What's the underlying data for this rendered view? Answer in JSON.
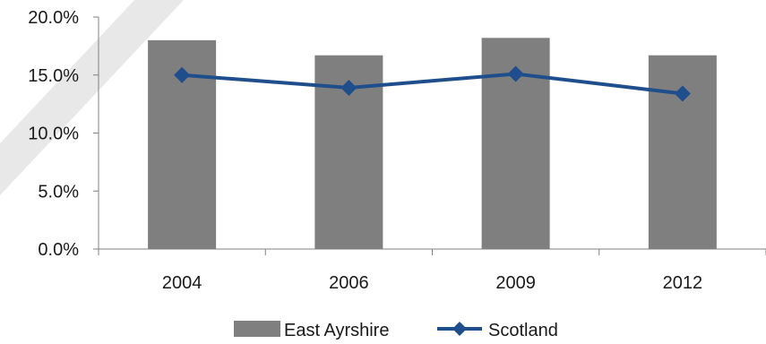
{
  "chart_data": {
    "type": "bar",
    "categories": [
      "2004",
      "2006",
      "2009",
      "2012"
    ],
    "series": [
      {
        "name": "East Ayrshire",
        "type": "bar",
        "values": [
          18.0,
          16.7,
          18.2,
          16.7
        ],
        "color": "#7f7f7f"
      },
      {
        "name": "Scotland",
        "type": "line",
        "values": [
          15.0,
          13.9,
          15.1,
          13.4
        ],
        "color": "#1f4e8c",
        "marker": "diamond"
      }
    ],
    "yticks": [
      "0.0%",
      "5.0%",
      "10.0%",
      "15.0%",
      "20.0%"
    ],
    "ylim": [
      0,
      20
    ],
    "grid": false,
    "legend_position": "bottom",
    "decoration_color": "#d9d9d9"
  }
}
